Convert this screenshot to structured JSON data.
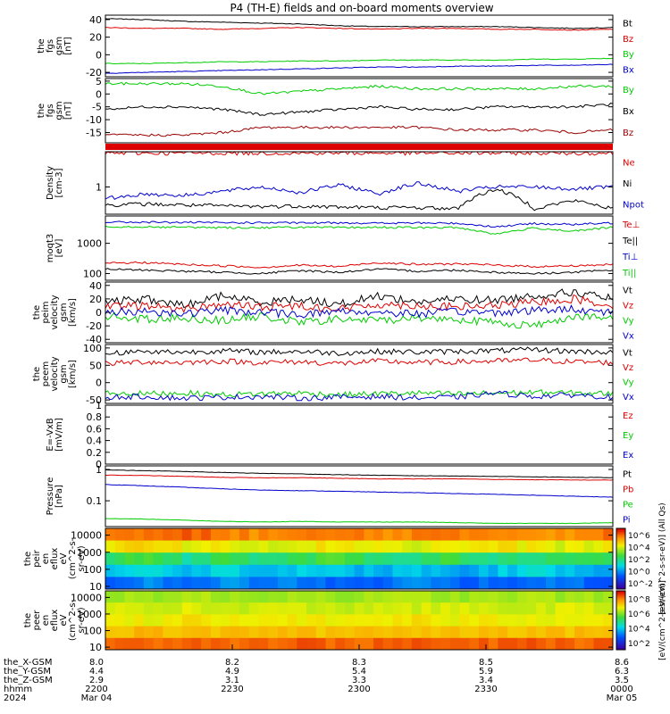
{
  "title": "P4 (TH-E) fields and on-board moments overview",
  "chart_data": [
    {
      "type": "line",
      "ylabel": [
        "the",
        "fgs",
        "gsm",
        "[nT]"
      ],
      "ylim": [
        -25,
        45
      ],
      "ticks": [
        40,
        20,
        0,
        -20
      ],
      "series": [
        {
          "name": "Bt",
          "color": "#000000",
          "values": [
            41,
            40,
            38,
            37,
            36,
            35,
            33,
            32,
            32,
            32,
            32,
            31,
            30,
            31
          ]
        },
        {
          "name": "Bz",
          "color": "#dd0000",
          "values": [
            31,
            30,
            30,
            29,
            30,
            31,
            30,
            29,
            30,
            30,
            29,
            29,
            28,
            29
          ]
        },
        {
          "name": "By",
          "color": "#00cc00",
          "values": [
            -10,
            -10,
            -9,
            -8,
            -8,
            -7,
            -7,
            -6,
            -6,
            -6,
            -6,
            -5,
            -5,
            -4
          ]
        },
        {
          "name": "Bx",
          "color": "#0000cc",
          "values": [
            -21,
            -20,
            -19,
            -18,
            -17,
            -16,
            -15,
            -14,
            -14,
            -13,
            -13,
            -12,
            -12,
            -11
          ]
        }
      ]
    },
    {
      "type": "line",
      "ylabel": [
        "the",
        "fgs",
        "gsm",
        "[nT]"
      ],
      "ylim": [
        -19,
        6
      ],
      "ticks": [
        5,
        0,
        -5,
        -10,
        -15
      ],
      "series": [
        {
          "name": "By",
          "color": "#00cc00",
          "values": [
            4,
            4,
            4,
            3,
            0,
            1,
            2,
            3,
            2,
            2,
            2,
            2,
            3,
            3
          ]
        },
        {
          "name": "Bx",
          "color": "#000000",
          "values": [
            -6,
            -5,
            -5,
            -6,
            -8,
            -7,
            -6,
            -5,
            -6,
            -6,
            -5,
            -5,
            -5,
            -4
          ]
        },
        {
          "name": "Bz",
          "color": "#990000",
          "values": [
            -16,
            -16,
            -16,
            -15,
            -13,
            -13,
            -13,
            -13,
            -13,
            -14,
            -14,
            -14,
            -15,
            -14
          ]
        }
      ]
    },
    {
      "type": "line",
      "ylabel": [
        "Density",
        "[cm-3]"
      ],
      "ylim": [
        0.25,
        6
      ],
      "log": true,
      "ticks": [
        1
      ],
      "series": [
        {
          "name": "Ne",
          "color": "#dd0000",
          "values": [
            5.6,
            5.6,
            5.6,
            5.6,
            5.6,
            5.6,
            5.6,
            5.6,
            5.6,
            5.6,
            5.6,
            5.6,
            5.6,
            5.6
          ]
        },
        {
          "name": "Ni",
          "color": "#000000",
          "values": [
            0.4,
            0.42,
            0.4,
            0.38,
            0.37,
            0.38,
            0.36,
            0.35,
            0.35,
            0.33,
            0.9,
            0.33,
            0.5,
            0.33
          ]
        },
        {
          "name": "Npot",
          "color": "#0000cc",
          "values": [
            0.55,
            0.7,
            0.65,
            0.8,
            1.0,
            0.75,
            1.1,
            0.7,
            1.2,
            0.8,
            1.0,
            1.0,
            0.9,
            1.0
          ]
        }
      ]
    },
    {
      "type": "line",
      "ylabel": [
        "moqt3",
        "[eV]"
      ],
      "ylim": [
        60,
        8000
      ],
      "log": true,
      "ticks": [
        1000,
        100
      ],
      "series": [
        {
          "name": "Te⊥",
          "color": "#dd0000",
          "values": [
            220,
            230,
            200,
            180,
            160,
            190,
            170,
            230,
            200,
            210,
            190,
            170,
            180,
            200
          ]
        },
        {
          "name": "Te||",
          "color": "#000000",
          "values": [
            140,
            130,
            120,
            110,
            100,
            125,
            110,
            140,
            120,
            130,
            110,
            100,
            110,
            130
          ]
        },
        {
          "name": "Ti⊥",
          "color": "#0000cc",
          "values": [
            5000,
            5000,
            4900,
            4800,
            4800,
            4700,
            4800,
            4600,
            4700,
            4600,
            3500,
            4500,
            4200,
            4700
          ]
        },
        {
          "name": "Ti||",
          "color": "#00cc00",
          "values": [
            3600,
            3500,
            3400,
            3300,
            3300,
            3400,
            3300,
            3400,
            3300,
            3300,
            2000,
            3200,
            2500,
            3400
          ]
        }
      ]
    },
    {
      "type": "line",
      "ylabel": [
        "the",
        "peim",
        "velocity",
        "gsm",
        "[km/s]"
      ],
      "ylim": [
        -45,
        45
      ],
      "ticks": [
        40,
        20,
        0,
        -20,
        -40
      ],
      "series": [
        {
          "name": "Vt",
          "color": "#000000",
          "values": [
            15,
            20,
            10,
            25,
            15,
            20,
            12,
            25,
            15,
            20,
            18,
            25,
            30,
            20
          ]
        },
        {
          "name": "Vz",
          "color": "#dd0000",
          "values": [
            8,
            10,
            5,
            12,
            8,
            10,
            5,
            12,
            10,
            8,
            10,
            15,
            20,
            10
          ]
        },
        {
          "name": "Vy",
          "color": "#00cc00",
          "values": [
            -5,
            -10,
            -8,
            -12,
            -6,
            -15,
            -10,
            -12,
            -8,
            -10,
            -15,
            -20,
            -5,
            -10
          ]
        },
        {
          "name": "Vx",
          "color": "#0000cc",
          "values": [
            0,
            2,
            -2,
            3,
            0,
            -3,
            2,
            0,
            -2,
            1,
            0,
            3,
            5,
            0
          ]
        }
      ]
    },
    {
      "type": "line",
      "ylabel": [
        "the",
        "peem",
        "velocity",
        "gsm",
        "[km/s]"
      ],
      "ylim": [
        -60,
        110
      ],
      "ticks": [
        100,
        50,
        0,
        -50
      ],
      "series": [
        {
          "name": "Vt",
          "color": "#000000",
          "values": [
            85,
            90,
            88,
            92,
            88,
            90,
            85,
            90,
            88,
            90,
            92,
            95,
            90,
            88
          ]
        },
        {
          "name": "Vz",
          "color": "#dd0000",
          "values": [
            55,
            60,
            58,
            62,
            58,
            60,
            55,
            62,
            58,
            60,
            62,
            65,
            60,
            58
          ]
        },
        {
          "name": "Vy",
          "color": "#00cc00",
          "values": [
            -30,
            -32,
            -30,
            -35,
            -32,
            -30,
            -35,
            -32,
            -30,
            -33,
            -30,
            -28,
            -30,
            -32
          ]
        },
        {
          "name": "Vx",
          "color": "#0000cc",
          "values": [
            -42,
            -40,
            -45,
            -42,
            -40,
            -45,
            -42,
            -40,
            -44,
            -42,
            -30,
            -40,
            -35,
            -42
          ]
        }
      ]
    },
    {
      "type": "line",
      "ylabel": [
        "E=-VxB",
        "[mV/m]"
      ],
      "ylim": [
        0,
        1
      ],
      "ticks": [
        1.0,
        0.8,
        0.6,
        0.4,
        0.2,
        0.0
      ],
      "series": [
        {
          "name": "Ez",
          "color": "#dd0000",
          "values": []
        },
        {
          "name": "Ey",
          "color": "#00cc00",
          "values": []
        },
        {
          "name": "Ex",
          "color": "#0000cc",
          "values": []
        }
      ]
    },
    {
      "type": "line",
      "ylabel": [
        "Pressure",
        "[nPa]"
      ],
      "ylim": [
        0.015,
        1.3
      ],
      "log": true,
      "ticks": [
        1.0,
        0.1
      ],
      "series": [
        {
          "name": "Pt",
          "color": "#000000",
          "values": [
            0.96,
            0.92,
            0.86,
            0.8,
            0.75,
            0.72,
            0.68,
            0.65,
            0.63,
            0.62,
            0.6,
            0.58,
            0.56,
            0.55
          ]
        },
        {
          "name": "Pb",
          "color": "#dd0000",
          "values": [
            0.66,
            0.64,
            0.6,
            0.56,
            0.54,
            0.55,
            0.52,
            0.5,
            0.5,
            0.5,
            0.48,
            0.47,
            0.46,
            0.46
          ]
        },
        {
          "name": "Pe",
          "color": "#00cc00",
          "values": [
            0.027,
            0.026,
            0.024,
            0.022,
            0.021,
            0.022,
            0.021,
            0.021,
            0.021,
            0.02,
            0.019,
            0.019,
            0.019,
            0.02
          ]
        },
        {
          "name": "Pi",
          "color": "#0000cc",
          "values": [
            0.33,
            0.3,
            0.27,
            0.24,
            0.22,
            0.21,
            0.2,
            0.19,
            0.18,
            0.17,
            0.16,
            0.15,
            0.14,
            0.13
          ]
        }
      ]
    },
    {
      "type": "heatmap",
      "ylabel": [
        "the",
        "peir",
        "en",
        "eflux",
        "eV",
        "(cm^2-s-",
        "sr-eV)"
      ],
      "ylim": [
        7,
        25000
      ],
      "log": true,
      "ticks": [
        "10000",
        "1000",
        "100",
        "10"
      ],
      "rows": [
        [
          6.9,
          6.9,
          7.0,
          6.9,
          6.8,
          6.8,
          6.9,
          6.8,
          6.9,
          6.8,
          6.9,
          6.8,
          6.8,
          6.9
        ],
        [
          6.2,
          6.3,
          6.1,
          6.2,
          6.0,
          6.1,
          6.2,
          6.1,
          6.0,
          6.1,
          6.2,
          6.1,
          6.0,
          6.1
        ],
        [
          5.0,
          5.3,
          4.8,
          5.2,
          4.9,
          5.1,
          5.3,
          4.9,
          5.0,
          5.2,
          4.8,
          5.0,
          5.1,
          5.0
        ],
        [
          4.2,
          4.5,
          4.0,
          4.6,
          4.1,
          4.4,
          4.2,
          4.1,
          4.3,
          4.0,
          4.2,
          4.4,
          4.3,
          4.1
        ],
        [
          3.6,
          3.9,
          3.5,
          4.0,
          3.7,
          3.8,
          3.6,
          3.5,
          3.9,
          3.6,
          3.7,
          3.6,
          3.8,
          3.5
        ]
      ]
    },
    {
      "type": "heatmap",
      "ylabel": [
        "the",
        "peer",
        "en",
        "eflux",
        "eV",
        "(cm^2-s-",
        "sr-eV)"
      ],
      "ylim": [
        7,
        25000
      ],
      "log": true,
      "ticks": [
        "10000",
        "1000",
        "100",
        "10"
      ],
      "rows": [
        [
          6.0,
          6.0,
          6.1,
          6.0,
          6.0,
          6.1,
          6.0,
          6.0,
          6.1,
          6.0,
          6.0,
          6.1,
          6.0,
          6.0
        ],
        [
          6.4,
          6.3,
          6.4,
          6.2,
          6.4,
          6.3,
          6.2,
          6.4,
          6.3,
          6.4,
          6.2,
          6.3,
          6.4,
          6.3
        ],
        [
          6.6,
          6.5,
          6.7,
          6.5,
          6.6,
          6.6,
          6.5,
          6.6,
          6.7,
          6.5,
          6.6,
          6.5,
          6.6,
          6.6
        ],
        [
          7.0,
          7.1,
          7.0,
          7.0,
          7.1,
          7.0,
          7.0,
          7.1,
          7.0,
          7.0,
          7.1,
          7.0,
          7.0,
          7.1
        ],
        [
          7.8,
          7.8,
          7.9,
          7.8,
          7.8,
          7.9,
          7.8,
          7.8,
          7.9,
          7.8,
          7.8,
          7.9,
          7.8,
          7.8
        ]
      ]
    }
  ],
  "colorbar": {
    "top_label": "[eV/(cm^2-s-sr-eV)] (All Qs)",
    "bottom_label": "[eV/(cm^2-s-sr-eV)]",
    "top_ticks": [
      "10^6",
      "10^4",
      "10^2",
      "10^0",
      "10^-2"
    ],
    "bottom_ticks": [
      "10^8",
      "10^6",
      "10^4",
      "10^2"
    ]
  },
  "x_axis": {
    "ticks": [
      {
        "lines": [
          "8.0",
          "4.4",
          "2.9",
          "2200",
          "Mar 04"
        ]
      },
      {
        "lines": [
          "8.2",
          "4.9",
          "3.1",
          "2230",
          ""
        ]
      },
      {
        "lines": [
          "8.3",
          "5.4",
          "3.3",
          "2300",
          ""
        ]
      },
      {
        "lines": [
          "8.5",
          "5.9",
          "3.4",
          "2330",
          ""
        ]
      },
      {
        "lines": [
          "8.6",
          "6.3",
          "3.5",
          "0000",
          "Mar 05"
        ]
      }
    ],
    "row_labels": [
      "the_X-GSM",
      "the_Y-GSM",
      "the_Z-GSM",
      "hhmm",
      "2024"
    ]
  }
}
